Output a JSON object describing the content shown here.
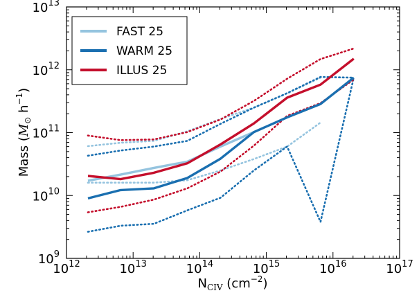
{
  "chart_data": {
    "type": "line",
    "xscale": "log",
    "yscale": "log",
    "xlim": [
      1000000000000.0,
      1e+17
    ],
    "ylim": [
      1000000000.0,
      10000000000000.0
    ],
    "xlabel_main": "N",
    "xlabel_sub": "CIV",
    "xlabel_unit_pre": " (cm",
    "xlabel_unit_exp": "−2",
    "xlabel_unit_post": ")",
    "ylabel_pre": "Mass (",
    "ylabel_math": "M",
    "ylabel_math_sub": "⊙",
    "ylabel_unit": " h",
    "ylabel_unit_exp": "−1",
    "ylabel_post": ")",
    "xticks": [
      {
        "base": "10",
        "exp": "12"
      },
      {
        "base": "10",
        "exp": "13"
      },
      {
        "base": "10",
        "exp": "14"
      },
      {
        "base": "10",
        "exp": "15"
      },
      {
        "base": "10",
        "exp": "16"
      },
      {
        "base": "10",
        "exp": "17"
      }
    ],
    "yticks": [
      {
        "base": "10",
        "exp": "9"
      },
      {
        "base": "10",
        "exp": "10"
      },
      {
        "base": "10",
        "exp": "11"
      },
      {
        "base": "10",
        "exp": "12"
      },
      {
        "base": "10",
        "exp": "13"
      }
    ],
    "legend": {
      "position": "top-left"
    },
    "x": [
      2100000000000.0,
      6500000000000.0,
      20500000000000.0,
      65000000000000.0,
      205000000000000.0,
      650000000000000.0,
      2050000000000000.0,
      6500000000000000.0,
      2.05e+16
    ],
    "series": [
      {
        "name": "FAST 25",
        "color": "#95c4df",
        "median": [
          17200000000.0,
          21500000000.0,
          27500000000.0,
          34500000000.0,
          60000000000.0,
          102000000000.0,
          null,
          null,
          null
        ],
        "upper": [
          61000000000.0,
          69000000000.0,
          74000000000.0,
          105000000000.0,
          165000000000.0,
          250000000000.0,
          420000000000.0,
          750000000000.0,
          null
        ],
        "lower": [
          16000000000.0,
          16000000000.0,
          16000000000.0,
          17500000000.0,
          25000000000.0,
          38000000000.0,
          60000000000.0,
          145000000000.0,
          null
        ]
      },
      {
        "name": "WARM 25",
        "color": "#1a6fb0",
        "median": [
          9000000000.0,
          12200000000.0,
          13000000000.0,
          19000000000.0,
          38500000000.0,
          102000000000.0,
          175000000000.0,
          285000000000.0,
          750000000000.0
        ],
        "upper": [
          43000000000.0,
          52000000000.0,
          60000000000.0,
          74000000000.0,
          138000000000.0,
          250000000000.0,
          425000000000.0,
          770000000000.0,
          750000000000.0
        ],
        "lower": [
          2650000000.0,
          3300000000.0,
          3550000000.0,
          5800000000.0,
          9200000000.0,
          25000000000.0,
          60000000000.0,
          3800000000.0,
          750000000000.0
        ]
      },
      {
        "name": "ILLUS 25",
        "color": "#c40f2c",
        "median": [
          20500000000.0,
          18200000000.0,
          23000000000.0,
          32500000000.0,
          65000000000.0,
          140000000000.0,
          360000000000.0,
          580000000000.0,
          1500000000000.0
        ],
        "upper": [
          90000000000.0,
          76000000000.0,
          78000000000.0,
          102000000000.0,
          162000000000.0,
          320000000000.0,
          720000000000.0,
          1480000000000.0,
          2180000000000.0
        ],
        "lower": [
          5400000000.0,
          6600000000.0,
          8600000000.0,
          13000000000.0,
          24000000000.0,
          62000000000.0,
          185000000000.0,
          295000000000.0,
          700000000000.0
        ]
      }
    ]
  }
}
